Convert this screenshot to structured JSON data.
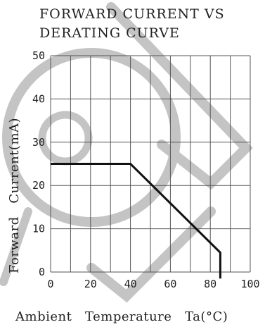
{
  "chart_data": {
    "type": "line",
    "title": [
      "FORWARD CURRENT VS",
      "DERATING CURVE"
    ],
    "xlabel": "Ambient   Temperature   Ta(°C)",
    "ylabel": "Forward   Current(mA)",
    "xlim": [
      0,
      100
    ],
    "ylim": [
      0,
      50
    ],
    "x_ticks": [
      0,
      20,
      40,
      60,
      80,
      100
    ],
    "y_ticks": [
      0,
      10,
      20,
      30,
      40,
      50
    ],
    "grid": true,
    "series": [
      {
        "x": [
          0,
          40,
          85,
          85
        ],
        "y": [
          25,
          25,
          4.5,
          -1.5
        ]
      }
    ]
  },
  "colors": {
    "curve": "#111111",
    "grid": "#555555",
    "watermark": "#c4c4c4"
  }
}
